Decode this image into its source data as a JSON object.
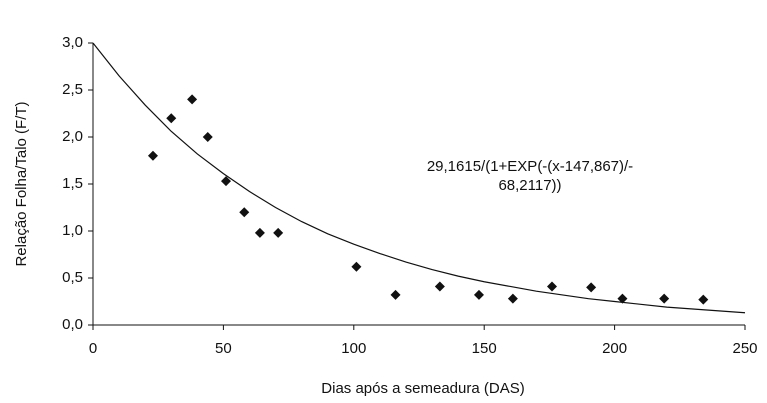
{
  "chart_data": {
    "type": "scatter",
    "xlabel": "Dias após a semeadura (DAS)",
    "ylabel": "Relação Folha/Talo (F/T)",
    "annotation": [
      "29,1615/(1+EXP(-(x-147,867)/-",
      "68,2117))"
    ],
    "xlim": [
      0,
      250
    ],
    "ylim": [
      0,
      3
    ],
    "xticks": [
      0,
      50,
      100,
      150,
      200,
      250
    ],
    "yticks": [
      {
        "value": 0,
        "label": "0,0"
      },
      {
        "value": 0.5,
        "label": "0,5"
      },
      {
        "value": 1,
        "label": "1,0"
      },
      {
        "value": 1.5,
        "label": "1,5"
      },
      {
        "value": 2,
        "label": "2,0"
      },
      {
        "value": 2.5,
        "label": "2,5"
      },
      {
        "value": 3,
        "label": "3,0"
      }
    ],
    "grid": false,
    "series": [
      {
        "kind": "points",
        "color": "#111111",
        "x": [
          23,
          30,
          38,
          44,
          51,
          58,
          64,
          71,
          101,
          116,
          133,
          148,
          161,
          176,
          191,
          203,
          219,
          234
        ],
        "values": [
          1.8,
          2.2,
          2.4,
          2.0,
          1.53,
          1.2,
          0.98,
          0.98,
          0.62,
          0.32,
          0.41,
          0.32,
          0.28,
          0.41,
          0.4,
          0.28,
          0.28,
          0.27
        ]
      },
      {
        "kind": "line",
        "color": "#111111",
        "x": [
          0,
          10,
          20,
          30,
          40,
          50,
          60,
          70,
          80,
          90,
          100,
          110,
          120,
          130,
          140,
          150,
          160,
          170,
          180,
          190,
          200,
          210,
          220,
          230,
          240,
          250
        ],
        "values": [
          3.0,
          2.65,
          2.34,
          2.06,
          1.82,
          1.61,
          1.42,
          1.25,
          1.1,
          0.97,
          0.86,
          0.76,
          0.67,
          0.59,
          0.52,
          0.46,
          0.41,
          0.36,
          0.32,
          0.28,
          0.25,
          0.22,
          0.19,
          0.17,
          0.15,
          0.13
        ]
      }
    ]
  }
}
